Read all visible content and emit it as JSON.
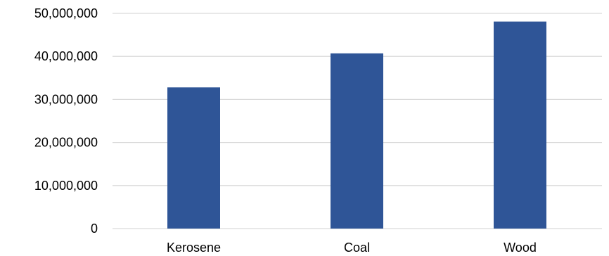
{
  "chart_data": {
    "type": "bar",
    "categories": [
      "Kerosene",
      "Coal",
      "Wood"
    ],
    "values": [
      32800000,
      40700000,
      48100000
    ],
    "title": "",
    "xlabel": "",
    "ylabel": "",
    "ylim": [
      0,
      50000000
    ],
    "y_ticks": [
      0,
      10000000,
      20000000,
      30000000,
      40000000,
      50000000
    ],
    "y_tick_labels": [
      "0",
      "10,000,000",
      "20,000,000",
      "30,000,000",
      "40,000,000",
      "50,000,000"
    ],
    "grid": true,
    "legend": "none",
    "bar_color": "#2f5597",
    "grid_color": "#d9d9d9"
  }
}
